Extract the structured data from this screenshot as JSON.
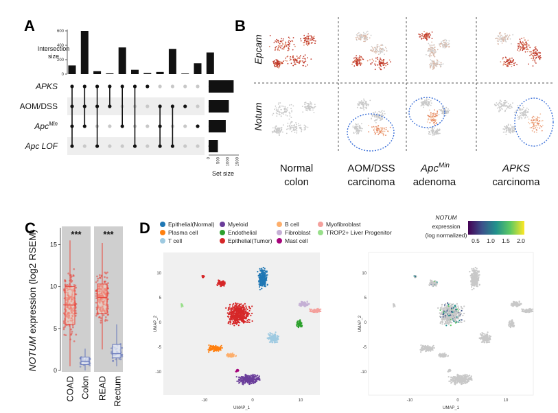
{
  "chart_data": [
    {
      "panel": "A",
      "type": "bar",
      "title": "",
      "ylabel": "Intersection size",
      "xlabel": "Set size",
      "ylim": [
        0,
        600
      ],
      "yticks": [
        "0",
        "200",
        "400",
        "600"
      ],
      "xticks": [
        "0",
        "500",
        "1000",
        "1500"
      ],
      "sets": [
        {
          "label": "APKS",
          "italic": true,
          "sup": "",
          "size": 1300
        },
        {
          "label": "AOM/DSS",
          "italic": false,
          "sup": "",
          "size": 1050
        },
        {
          "label": "Apc",
          "italic": true,
          "sup": "Min",
          "size": 890
        },
        {
          "label": "Apc LOF",
          "italic": true,
          "sup": "",
          "size": 480
        }
      ],
      "intersections": [
        {
          "size": 120,
          "members": [
            0,
            1,
            2,
            3
          ]
        },
        {
          "size": 600,
          "members": [
            0,
            1,
            2
          ]
        },
        {
          "size": 40,
          "members": [
            0,
            1,
            3
          ]
        },
        {
          "size": 10,
          "members": [
            0,
            1
          ]
        },
        {
          "size": 370,
          "members": [
            0,
            2
          ]
        },
        {
          "size": 60,
          "members": [
            0,
            3
          ]
        },
        {
          "size": 15,
          "members": [
            0
          ]
        },
        {
          "size": 30,
          "members": [
            1,
            2,
            3
          ]
        },
        {
          "size": 350,
          "members": [
            1,
            3
          ]
        },
        {
          "size": 8,
          "members": [
            1
          ]
        },
        {
          "size": 150,
          "members": [
            2
          ]
        },
        {
          "size": 300,
          "members": [
            3
          ]
        }
      ]
    },
    {
      "panel": "C",
      "type": "box",
      "ylabel_gene": "NOTUM",
      "ylabel_rest": " expression (log2 RSEM)",
      "ylim": [
        0,
        17
      ],
      "yticks": [
        "0",
        "5",
        "10",
        "15"
      ],
      "groups": [
        {
          "name": "COAD",
          "items": [
            {
              "label": "COAD",
              "min": 0.5,
              "q1": 5.5,
              "median": 7.8,
              "q3": 10,
              "max": 15.5,
              "color": "#e8443a"
            },
            {
              "label": "Colon",
              "min": 0,
              "q1": 0.7,
              "median": 1.1,
              "q3": 1.6,
              "max": 2.6,
              "color": "#6677bb"
            }
          ],
          "significance": "***"
        },
        {
          "name": "READ",
          "items": [
            {
              "label": "READ",
              "min": 2.5,
              "q1": 6.8,
              "median": 8.7,
              "q3": 10.3,
              "max": 15.2,
              "color": "#e8443a"
            },
            {
              "label": "Rectum",
              "min": 0.5,
              "q1": 1.5,
              "median": 2,
              "q3": 3.1,
              "max": 5.5,
              "color": "#6677bb"
            }
          ],
          "significance": "***"
        }
      ],
      "xlabels": [
        "COAD",
        "Colon",
        "READ",
        "Rectum"
      ]
    },
    {
      "panel": "D",
      "type": "scatter",
      "xlabel": "UMAP_1",
      "ylabel": "UMAP_2",
      "xticks": [
        "-10",
        "0",
        "10"
      ],
      "yticks": [
        "10",
        "5",
        "0",
        "-5",
        "-10"
      ],
      "legend": [
        {
          "name": "Epithelial(Normal)",
          "color": "#1f77b4"
        },
        {
          "name": "Plasma cell",
          "color": "#ff7f0e"
        },
        {
          "name": "T cell",
          "color": "#9ecae1"
        },
        {
          "name": "Myeloid",
          "color": "#6a3d9a"
        },
        {
          "name": "Endothelial",
          "color": "#2ca02c"
        },
        {
          "name": "Epithelial(Tumor)",
          "color": "#d62728"
        },
        {
          "name": "B cell",
          "color": "#fdae6b"
        },
        {
          "name": "Fibroblast",
          "color": "#c5b0d5"
        },
        {
          "name": "Mast cell",
          "color": "#a6037a"
        },
        {
          "name": "Myofibroblast",
          "color": "#f4a09c"
        },
        {
          "name": "TROP2+ Liver Progenitor",
          "color": "#98df8a"
        }
      ],
      "colorbar": {
        "title_gene": "NOTUM",
        "title_rest": "expression",
        "title_note": "(log normalized)",
        "ticks": [
          "0.5",
          "1.0",
          "1.5",
          "2.0"
        ]
      }
    }
  ],
  "panelB": {
    "rows": [
      "Epcam",
      "Notum"
    ],
    "cols": [
      {
        "line1": "Normal",
        "line2": "colon",
        "sup": ""
      },
      {
        "line1": "AOM/DSS",
        "line2": "carcinoma",
        "sup": ""
      },
      {
        "line1": "Apc",
        "line2": "adenoma",
        "sup": "Min"
      },
      {
        "line1": "APKS",
        "line2": "carcinoma",
        "sup": ""
      }
    ]
  },
  "letters": [
    "A",
    "B",
    "C",
    "D"
  ]
}
